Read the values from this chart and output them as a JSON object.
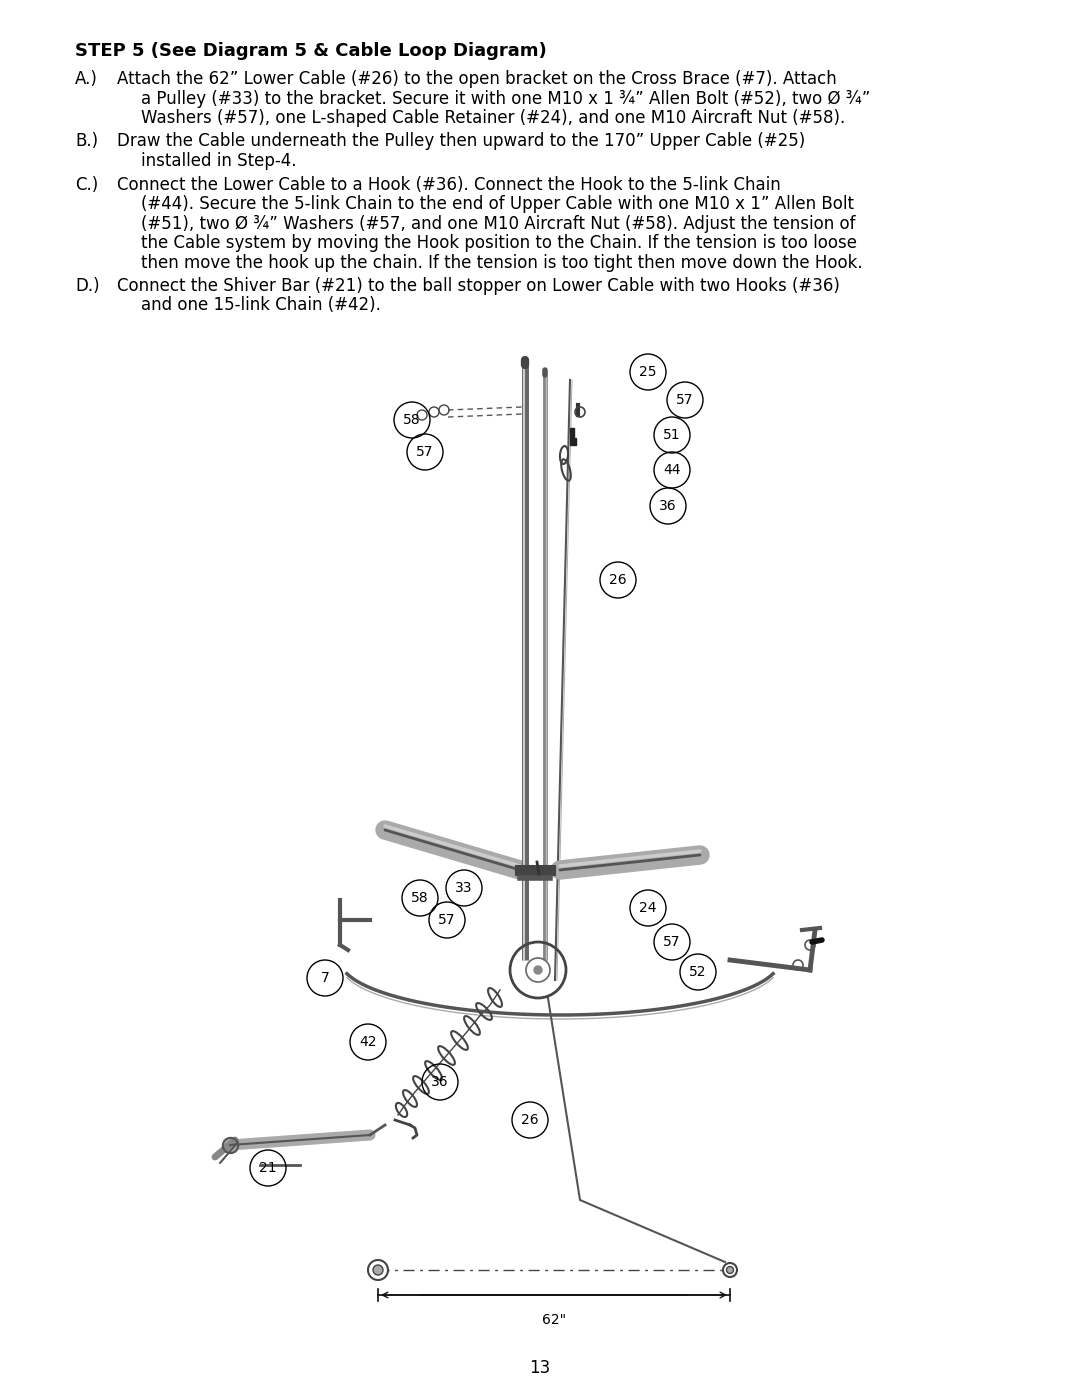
{
  "bg": "#ffffff",
  "text_color": "#000000",
  "page_number": "13",
  "title": "STEP 5 (See Diagram 5 & Cable Loop Diagram)",
  "para_A_label": "A.)",
  "para_A_lines": [
    "Attach the 62” Lower Cable (#26) to the open bracket on the Cross Brace (#7). Attach",
    "    a Pulley (#33) to the bracket. Secure it with one M10 x 1 ¾” Allen Bolt (#52), two Ø ¾”",
    "    Washers (#57), one L-shaped Cable Retainer (#24), and one M10 Aircraft Nut (#58)."
  ],
  "para_B_label": "B.)",
  "para_B_lines": [
    "Draw the Cable underneath the Pulley then upward to the 170” Upper Cable (#25)",
    "    installed in Step-4."
  ],
  "para_C_label": "C.)",
  "para_C_lines": [
    "Connect the Lower Cable to a Hook (#36). Connect the Hook to the 5-link Chain",
    "    (#44). Secure the 5-link Chain to the end of Upper Cable with one M10 x 1” Allen Bolt",
    "    (#51), two Ø ¾” Washers (#57, and one M10 Aircraft Nut (#58). Adjust the tension of",
    "    the Cable system by moving the Hook position to the Chain. If the tension is too loose",
    "    then move the hook up the chain. If the tension is too tight then move down the Hook."
  ],
  "para_D_label": "D.)",
  "para_D_lines": [
    "Connect the Shiver Bar (#21) to the ball stopper on Lower Cable with two Hooks (#36)",
    "    and one 15-link Chain (#42)."
  ],
  "title_fs": 13,
  "body_fs": 12,
  "lbl_circle_r": 14,
  "lbl_circle_fs": 9
}
